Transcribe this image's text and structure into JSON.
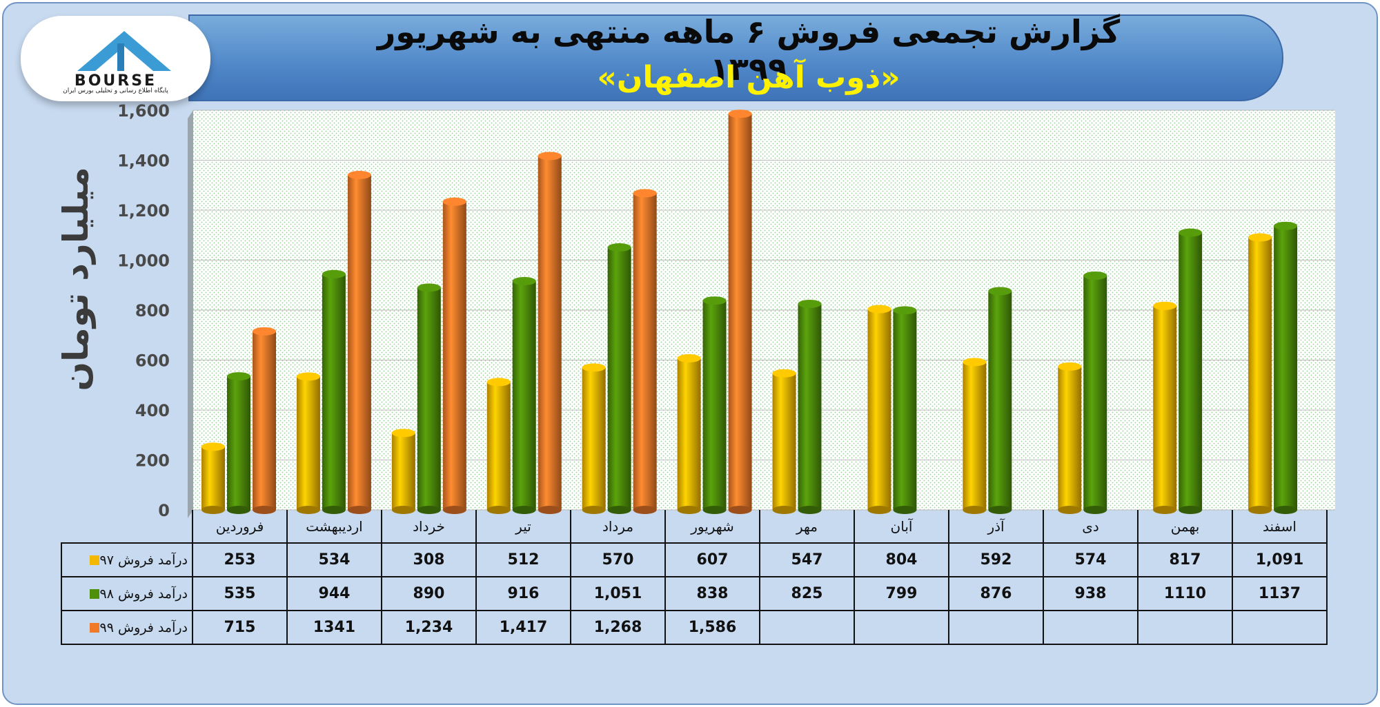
{
  "header": {
    "title_line1": "گزارش تجمعی فروش ۶ ماهه منتهی به شهریور ۱۳۹۹",
    "title_line2": "«ذوب آهن اصفهان»"
  },
  "logo": {
    "text": "BOURSE",
    "subtitle": "پایگاه اطلاع رسانی و تحلیلی بورس ایران"
  },
  "chart_data": {
    "type": "bar",
    "ylabel": "میلیارد تومان",
    "ylim": [
      0,
      1600
    ],
    "yticks": [
      "0",
      "200",
      "400",
      "600",
      "800",
      "1,000",
      "1,200",
      "1,400",
      "1,600"
    ],
    "grid": true,
    "categories": [
      "فروردین",
      "اردیبهشت",
      "خرداد",
      "تیر",
      "مرداد",
      "شهریور",
      "مهر",
      "آبان",
      "آذر",
      "دی",
      "بهمن",
      "اسفند"
    ],
    "series": [
      {
        "name": "درآمد فروش ۹۷",
        "color": "#f5b800",
        "values": [
          253,
          534,
          308,
          512,
          570,
          607,
          547,
          804,
          592,
          574,
          817,
          1091
        ],
        "labels": [
          "253",
          "534",
          "308",
          "512",
          "570",
          "607",
          "547",
          "804",
          "592",
          "574",
          "817",
          "1,091"
        ]
      },
      {
        "name": "درآمد فروش ۹۸",
        "color": "#4f8f0a",
        "values": [
          535,
          944,
          890,
          916,
          1051,
          838,
          825,
          799,
          876,
          938,
          1110,
          1137
        ],
        "labels": [
          "535",
          "944",
          "890",
          "916",
          "1,051",
          "838",
          "825",
          "799",
          "876",
          "938",
          "1110",
          "1137"
        ]
      },
      {
        "name": "درآمد فروش ۹۹",
        "color": "#f07a2a",
        "values": [
          715,
          1341,
          1234,
          1417,
          1268,
          1586,
          null,
          null,
          null,
          null,
          null,
          null
        ],
        "labels": [
          "715",
          "1341",
          "1,234",
          "1,417",
          "1,268",
          "1,586",
          "",
          "",
          "",
          "",
          "",
          ""
        ]
      }
    ]
  }
}
